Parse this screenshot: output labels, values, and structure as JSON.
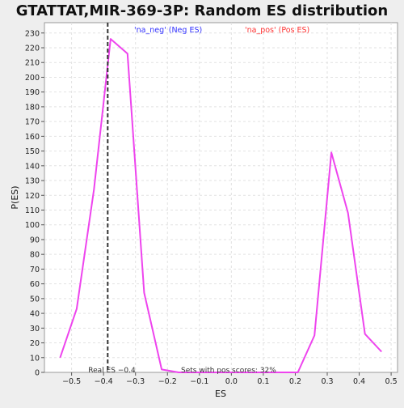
{
  "chart_data": {
    "type": "line",
    "title": "GTATTAT,MIR-369-3P: Random ES distribution",
    "xlabel": "ES",
    "ylabel": "P(ES)",
    "xlim": [
      -0.585,
      0.52
    ],
    "ylim": [
      0,
      237
    ],
    "x_ticks": [
      -0.5,
      -0.4,
      -0.3,
      -0.2,
      -0.1,
      0.0,
      0.1,
      0.2,
      0.3,
      0.4,
      0.5
    ],
    "x_tick_labels": [
      "−0.5",
      "−0.4",
      "−0.3",
      "−0.2",
      "−0.1",
      "0.0",
      "0.1",
      "0.2",
      "0.3",
      "0.4",
      "0.5"
    ],
    "y_ticks": [
      0,
      10,
      20,
      30,
      40,
      50,
      60,
      70,
      80,
      90,
      100,
      110,
      120,
      130,
      140,
      150,
      160,
      170,
      180,
      190,
      200,
      210,
      220,
      230
    ],
    "grid": true,
    "legend": [
      {
        "label": "'na_neg' (Neg ES)",
        "color": "#3333ff"
      },
      {
        "label": "'na_pos' (Pos ES)",
        "color": "#ff3333"
      }
    ],
    "series": [
      {
        "color": "#ee44ee",
        "points": [
          [
            -0.536,
            10
          ],
          [
            -0.484,
            43
          ],
          [
            -0.43,
            124
          ],
          [
            -0.378,
            226
          ],
          [
            -0.325,
            216
          ],
          [
            -0.273,
            54
          ],
          [
            -0.218,
            2
          ],
          [
            -0.165,
            0
          ],
          [
            -0.112,
            0
          ],
          [
            -0.06,
            0
          ],
          [
            0.0,
            0
          ],
          [
            0.05,
            0
          ],
          [
            0.1,
            0
          ],
          [
            0.155,
            0
          ],
          [
            0.208,
            0
          ],
          [
            0.26,
            25
          ],
          [
            0.313,
            149
          ],
          [
            0.365,
            108
          ],
          [
            0.418,
            26
          ],
          [
            0.47,
            14
          ]
        ]
      }
    ],
    "real_es": {
      "x": -0.387,
      "label": "Real ES −0.4"
    },
    "annotation": "Sets with pos scores: 32%"
  }
}
